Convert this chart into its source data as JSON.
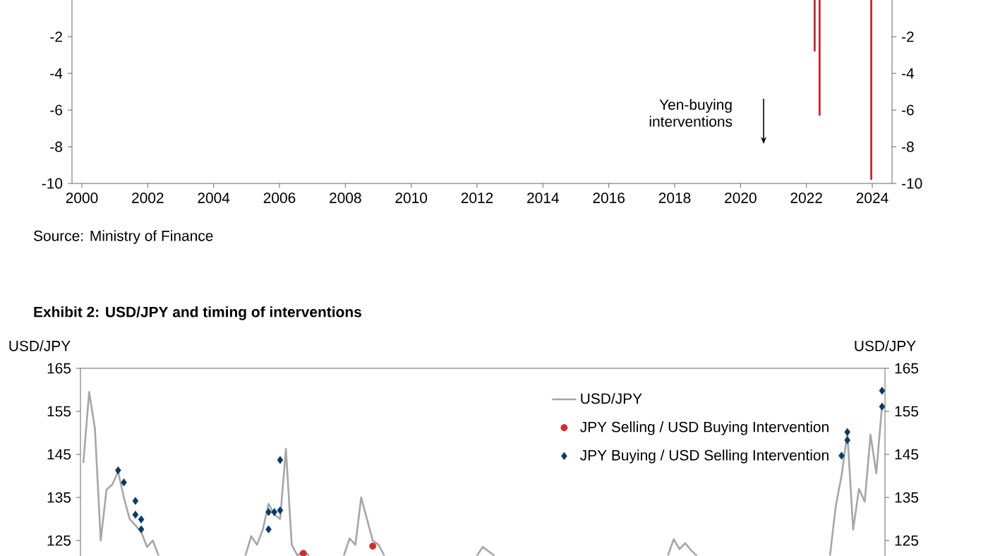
{
  "chart_data": [
    {
      "type": "bar",
      "x": [
        2022.25,
        2022.4,
        2023.97
      ],
      "values": [
        -2.8,
        -6.3,
        -9.8
      ],
      "color": "#c0282d",
      "xlim": [
        1999.7,
        2024.6
      ],
      "xticks": [
        2000,
        2002,
        2004,
        2006,
        2008,
        2010,
        2012,
        2014,
        2016,
        2018,
        2020,
        2022,
        2024
      ],
      "ylim": [
        -10,
        0
      ],
      "yticks": [
        -10,
        -8,
        -6,
        -4,
        -2
      ],
      "y2lim": [
        -10,
        0
      ],
      "y2ticks": [
        -10,
        -8,
        -6,
        -4,
        -2
      ],
      "annotations": [
        "Yen-buying interventions",
        "Source: Ministry of Finance"
      ]
    },
    {
      "type": "line",
      "title": "Exhibit 2: USD/JPY and timing of interventions",
      "ylabel": "USD/JPY",
      "y2label": "USD/JPY",
      "ylim": [
        121.4,
        165
      ],
      "yticks": [
        125,
        135,
        145,
        155,
        165
      ],
      "y2lim": [
        121.4,
        165
      ],
      "y2ticks": [
        125,
        135,
        145,
        155,
        165
      ],
      "tick_labels": "y",
      "legend": "top right",
      "categories": [
        null,
        null,
        null,
        null,
        null,
        null,
        null,
        null,
        null,
        null,
        null,
        null,
        null,
        null,
        null,
        null,
        null,
        null,
        null,
        null,
        null,
        null,
        null,
        null,
        null,
        null,
        null,
        null,
        null,
        null,
        null,
        null,
        null,
        null,
        null,
        null,
        null,
        null,
        null,
        null,
        null,
        null,
        null,
        null,
        null,
        null,
        null,
        null,
        null,
        null,
        null,
        null,
        null,
        null,
        null,
        null,
        null,
        null,
        null,
        null,
        null,
        null,
        null,
        null,
        null,
        null,
        null,
        null,
        null,
        null,
        null,
        null,
        null,
        null,
        null,
        null,
        null,
        null,
        null,
        null,
        null,
        null,
        null,
        null,
        null,
        null,
        null,
        null,
        null,
        null,
        null,
        null,
        null,
        null,
        null,
        null,
        null,
        null,
        null,
        null,
        null,
        null,
        null,
        null,
        null,
        null,
        null,
        null,
        null,
        null,
        null,
        null,
        null,
        null,
        null,
        null,
        null,
        null,
        null,
        null,
        null,
        null,
        null,
        null,
        null,
        null,
        null,
        null,
        null,
        null,
        null,
        null,
        null,
        null,
        null,
        null,
        null,
        null,
        null
      ],
      "series": [
        {
          "name": "USD/JPY",
          "type": "line",
          "color": "#a6a6a6",
          "values": [
            143,
            159.5,
            151,
            125,
            136.8,
            138,
            141,
            135,
            130,
            128.5,
            127,
            123.5,
            125,
            121.5,
            null,
            null,
            null,
            null,
            null,
            null,
            null,
            null,
            null,
            null,
            null,
            null,
            null,
            null,
            121.5,
            126,
            124,
            127.5,
            133.5,
            131,
            130,
            146.3,
            124,
            121.5,
            122.5,
            121.5,
            null,
            null,
            null,
            null,
            null,
            121.5,
            125.5,
            124,
            135,
            130,
            125,
            124,
            121.5,
            null,
            null,
            null,
            null,
            null,
            null,
            null,
            null,
            null,
            null,
            null,
            null,
            null,
            null,
            null,
            121.5,
            123.5,
            122.5,
            121.5,
            null,
            null,
            null,
            null,
            null,
            null,
            null,
            null,
            null,
            null,
            null,
            null,
            null,
            null,
            null,
            null,
            null,
            null,
            null,
            null,
            null,
            null,
            null,
            null,
            null,
            null,
            null,
            null,
            null,
            121.5,
            125.3,
            123,
            124.4,
            122.7,
            121.5,
            null,
            null,
            null,
            null,
            null,
            null,
            null,
            null,
            null,
            null,
            null,
            null,
            null,
            null,
            null,
            null,
            null,
            null,
            null,
            null,
            null,
            null,
            121.5,
            133,
            140.1,
            150,
            127.5,
            137,
            134,
            149.6,
            140.6,
            156.5
          ]
        },
        {
          "name": "JPY Selling / USD Buying Intervention",
          "type": "scatter",
          "marker": "circle",
          "color": "#d62b2b",
          "values": [
            null,
            null,
            null,
            null,
            null,
            null,
            null,
            null,
            null,
            null,
            null,
            null,
            null,
            null,
            null,
            null,
            null,
            null,
            null,
            null,
            null,
            null,
            null,
            null,
            null,
            null,
            null,
            null,
            null,
            null,
            null,
            null,
            null,
            null,
            null,
            null,
            null,
            null,
            122,
            null,
            null,
            null,
            null,
            null,
            null,
            null,
            null,
            null,
            null,
            null,
            123.7,
            null,
            null,
            null,
            null,
            null,
            null,
            null,
            null,
            null,
            null,
            null,
            null,
            null,
            null,
            null,
            null,
            null,
            null,
            null,
            null,
            null,
            null,
            null,
            null,
            null,
            null,
            null,
            null,
            null,
            null,
            null,
            null,
            null,
            null,
            null,
            null,
            null,
            null,
            null,
            null,
            null,
            null,
            null,
            null,
            null,
            null,
            null,
            null,
            null,
            null,
            null,
            null,
            null,
            null,
            null,
            null,
            null,
            null,
            null,
            null,
            null,
            null,
            null,
            null,
            null,
            null,
            null,
            null,
            null,
            null,
            null,
            null,
            null,
            null,
            null,
            null,
            null,
            null,
            null,
            null,
            null,
            null,
            null,
            null,
            null,
            null,
            null,
            null
          ]
        },
        {
          "name": "JPY Buying / USD Selling Intervention",
          "type": "scatter",
          "marker": "diamond",
          "color": "#0b3a63",
          "values": [
            null,
            null,
            null,
            null,
            null,
            null,
            141.3,
            138.5,
            null,
            134.2,
            129.9,
            null,
            null,
            null,
            null,
            null,
            null,
            null,
            null,
            null,
            null,
            null,
            null,
            null,
            null,
            null,
            null,
            null,
            null,
            null,
            null,
            null,
            127.6,
            131.6,
            132,
            null,
            null,
            null,
            null,
            null,
            null,
            null,
            null,
            null,
            null,
            null,
            null,
            null,
            null,
            null,
            null,
            null,
            null,
            null,
            null,
            null,
            null,
            null,
            null,
            null,
            null,
            null,
            null,
            null,
            null,
            null,
            null,
            null,
            null,
            null,
            null,
            null,
            null,
            null,
            null,
            null,
            null,
            null,
            null,
            null,
            null,
            null,
            null,
            null,
            null,
            null,
            null,
            null,
            null,
            null,
            null,
            null,
            null,
            null,
            null,
            null,
            null,
            null,
            null,
            null,
            null,
            null,
            null,
            null,
            null,
            null,
            null,
            null,
            null,
            null,
            null,
            null,
            null,
            null,
            null,
            null,
            null,
            null,
            null,
            null,
            null,
            null,
            null,
            null,
            null,
            null,
            null,
            null,
            null,
            null,
            null,
            144.7,
            148.3,
            null,
            null,
            null,
            null,
            null,
            159.8
          ]
        },
        {
          "type": "scatter",
          "marker": "diamond",
          "color": "#0b3a63",
          "values": [
            null,
            null,
            null,
            null,
            null,
            null,
            null,
            null,
            null,
            131,
            127.6,
            null,
            null,
            null,
            null,
            null,
            null,
            null,
            null,
            null,
            null,
            null,
            null,
            null,
            null,
            null,
            null,
            null,
            null,
            null,
            null,
            null,
            131.6,
            null,
            143.7,
            null,
            null,
            null,
            null,
            null,
            null,
            null,
            null,
            null,
            null,
            null,
            null,
            null,
            null,
            null,
            null,
            null,
            null,
            null,
            null,
            null,
            null,
            null,
            null,
            null,
            null,
            null,
            null,
            null,
            null,
            null,
            null,
            null,
            null,
            null,
            null,
            null,
            null,
            null,
            null,
            null,
            null,
            null,
            null,
            null,
            null,
            null,
            null,
            null,
            null,
            null,
            null,
            null,
            null,
            null,
            null,
            null,
            null,
            null,
            null,
            null,
            null,
            null,
            null,
            null,
            null,
            null,
            null,
            null,
            null,
            null,
            null,
            null,
            null,
            null,
            null,
            null,
            null,
            null,
            null,
            null,
            null,
            null,
            null,
            null,
            null,
            null,
            null,
            null,
            null,
            null,
            null,
            null,
            null,
            null,
            null,
            null,
            150.2,
            null,
            null,
            null,
            null,
            null,
            156.1
          ]
        }
      ]
    }
  ]
}
